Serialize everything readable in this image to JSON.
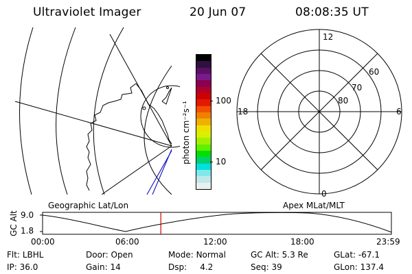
{
  "header": {
    "title": "Ultraviolet Imager",
    "date": "20 Jun 07",
    "time": "08:08:35 UT"
  },
  "colorbar": {
    "unit_label": "photon cm⁻²s⁻¹",
    "ticks": [
      "100",
      "10"
    ],
    "colors": [
      "#000000",
      "#301040",
      "#5a1066",
      "#7a1a8a",
      "#8a0050",
      "#b0002c",
      "#d00000",
      "#e21a00",
      "#f05000",
      "#f08000",
      "#f0b000",
      "#f0e000",
      "#d8f000",
      "#a0f000",
      "#60f000",
      "#00e000",
      "#00d070",
      "#00e0e0",
      "#80e8e8",
      "#c0e8e8",
      "#e8f0f0"
    ]
  },
  "polar_plot": {
    "labels_clock": [
      "12",
      "18",
      "6",
      "0"
    ],
    "labels_lat": [
      "60",
      "70",
      "80"
    ]
  },
  "timeline": {
    "left_label": "Geographic Lat/Lon",
    "right_label": "Apex MLat/MLT",
    "axis_title": "GC Alt",
    "y_ticks": [
      "9.0",
      "1.8"
    ],
    "x_ticks": [
      "00:00",
      "06:00",
      "12:00",
      "18:00",
      "23:59"
    ],
    "current_time_fraction": 0.339
  },
  "footer": {
    "row1": [
      {
        "label": "Flt:",
        "value": "LBHL"
      },
      {
        "label": "Door:",
        "value": "Open"
      },
      {
        "label": "Mode:",
        "value": "Normal"
      },
      {
        "label": "GC Alt:",
        "value": "5.3 Re"
      },
      {
        "label": "GLat:",
        "value": "-67.1"
      }
    ],
    "row2": [
      {
        "label": "IP:",
        "value": "36.0"
      },
      {
        "label": "Gain:",
        "value": "14"
      },
      {
        "label": "Dsp:",
        "value": "4.2"
      },
      {
        "label": "Seq:",
        "value": "39"
      },
      {
        "label": "GLon:",
        "value": "137.4"
      }
    ]
  },
  "colors": {
    "foreground": "#000000",
    "marker": "#cc0000",
    "track": "#2020c0"
  }
}
